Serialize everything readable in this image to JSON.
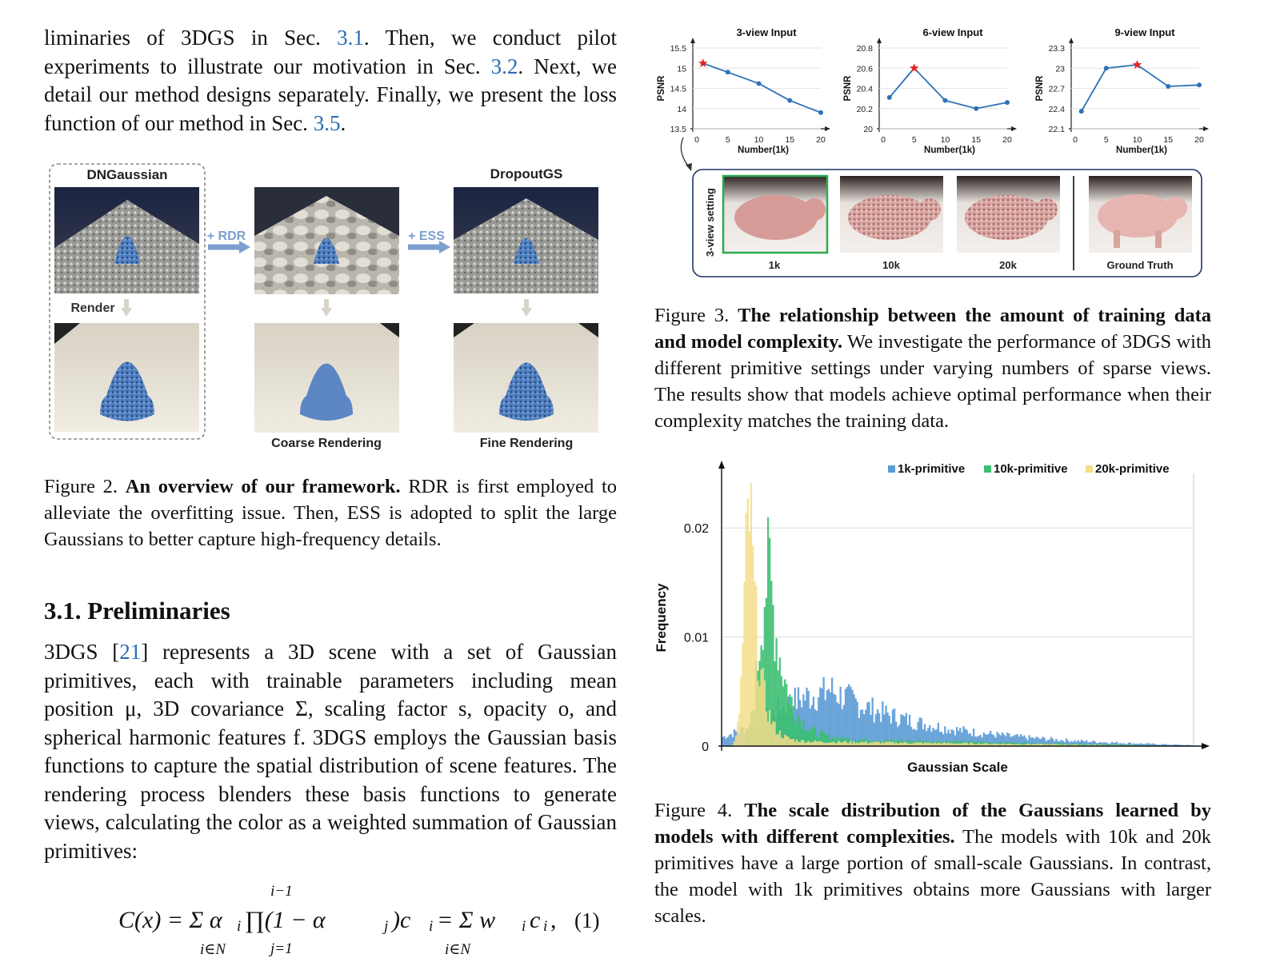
{
  "intro_paragraph": {
    "p1": "liminaries of 3DGS in Sec. ",
    "l1": "3.1",
    "p2": ". Then, we conduct pilot experiments to illustrate our motivation in Sec. ",
    "l2": "3.2",
    "p3": ". Next, we detail our method designs separately. Finally, we present the loss function of our method in Sec. ",
    "l3": "3.5",
    "p4": "."
  },
  "figure2": {
    "labels": {
      "dngaussian": "DNGaussian",
      "dropoutgs": "DropoutGS",
      "rdr": "+ RDR",
      "ess": "+ ESS",
      "render": "Render",
      "coarse": "Coarse Rendering",
      "fine": "Fine Rendering"
    },
    "caption": {
      "prefix": "Figure 2. ",
      "bold": "An overview of our framework.",
      "text": " RDR is first employed to alleviate the overfitting issue. Then, ESS is adopted to split the large Gaussians to better capture high-frequency details."
    }
  },
  "section": {
    "title": "3.1. Preliminaries",
    "p1": "3DGS [",
    "ref": "21",
    "p2": "] represents a 3D scene with a set of Gaussian primitives, each with trainable parameters including mean position μ, 3D covariance Σ, scaling factor s, opacity o, and spherical harmonic features f. 3DGS employs the Gaussian basis functions to capture the spatial distribution of scene features. The rendering process blenders these basis functions to generate views, calculating the color as a weighted summation of Gaussian primitives:"
  },
  "equation": {
    "lhs": "C(x) = Σ α",
    "mid": "∏(1 − α",
    "rhs": ")c",
    "tail": " = Σ w",
    "end": "c",
    "comma": ",",
    "upper": "i−1",
    "lower1": "i∈N",
    "lower2": "j=1",
    "lower3": "i∈N",
    "sub_i": "i",
    "sub_j": "j",
    "number": "(1)"
  },
  "figure3": {
    "ylabel": "PSNR",
    "xlabel": "Number(1k)",
    "panel_label": "3-view setting",
    "thumb_labels": [
      "1k",
      "10k",
      "20k",
      "Ground Truth"
    ],
    "caption": {
      "prefix": "Figure 3. ",
      "bold": "The relationship between the amount of training data and model complexity.",
      "text": " We investigate the performance of 3DGS with different primitive settings under varying numbers of sparse views. The results show that models achieve optimal performance when their complexity matches the training data."
    }
  },
  "figure4": {
    "caption": {
      "prefix": "Figure 4. ",
      "bold": "The scale distribution of the Gaussians learned by models with different complexities.",
      "text": " The models with 10k and 20k primitives have a large portion of small-scale Gaussians. In contrast, the model with 1k primitives obtains more Gaussians with larger scales."
    }
  },
  "colors": {
    "link": "#2a6db0",
    "line": "#2e72b8",
    "star": "#e0262b",
    "hist_1k": "#5b9bd5",
    "hist_10k": "#3cbf72",
    "hist_20k": "#f4de8a",
    "arrow": "#7d9fd0"
  },
  "chart_data": [
    {
      "type": "line",
      "title": "3-view Input",
      "xlabel": "Number(1k)",
      "ylabel": "PSNR",
      "x": [
        1,
        5,
        10,
        15,
        20
      ],
      "y": [
        15.12,
        14.9,
        14.62,
        14.2,
        13.9
      ],
      "best_index": 0,
      "xticks": [
        "0",
        "5",
        "10",
        "15",
        "20"
      ],
      "yticks": [
        "13.5",
        "14",
        "14.5",
        "15",
        "15.5"
      ],
      "xlim": [
        0,
        20
      ],
      "ylim": [
        13.5,
        15.5
      ]
    },
    {
      "type": "line",
      "title": "6-view Input",
      "xlabel": "Number(1k)",
      "ylabel": "PSNR",
      "x": [
        1,
        5,
        10,
        15,
        20
      ],
      "y": [
        20.31,
        20.6,
        20.28,
        20.2,
        20.26
      ],
      "best_index": 1,
      "xticks": [
        "0",
        "5",
        "10",
        "15",
        "20"
      ],
      "yticks": [
        "20",
        "20.2",
        "20.4",
        "20.6",
        "20.8"
      ],
      "xlim": [
        0,
        20
      ],
      "ylim": [
        20.0,
        20.8
      ]
    },
    {
      "type": "line",
      "title": "9-view Input",
      "xlabel": "Number(1k)",
      "ylabel": "PSNR",
      "x": [
        1,
        5,
        10,
        15,
        20
      ],
      "y": [
        22.36,
        23.0,
        23.05,
        22.73,
        22.75
      ],
      "best_index": 2,
      "xticks": [
        "0",
        "5",
        "10",
        "15",
        "20"
      ],
      "yticks": [
        "22.1",
        "22.4",
        "22.7",
        "23",
        "23.3"
      ],
      "xlim": [
        0,
        20
      ],
      "ylim": [
        22.1,
        23.3
      ]
    },
    {
      "type": "bar",
      "subtype": "histogram",
      "xlabel": "Gaussian Scale",
      "ylabel": "Frequency",
      "yticks": [
        "0",
        "0.01",
        "0.02"
      ],
      "ylim": [
        0,
        0.025
      ],
      "legend_position": "top-right",
      "grid": true,
      "series": [
        {
          "name": "20k-primitive",
          "peak_bin": 0.06,
          "peak": 0.0213,
          "width": 0.03,
          "tail": 0.0005
        },
        {
          "name": "10k-primitive",
          "peak_bin": 0.1,
          "peak": 0.0158,
          "width": 0.05,
          "tail": 0.0008
        },
        {
          "name": "1k-primitive",
          "peak_bin": 0.22,
          "peak": 0.0048,
          "width": 0.3,
          "tail": 0.0008
        }
      ],
      "series_colors": [
        "#f4de8a",
        "#3cbf72",
        "#5b9bd5"
      ]
    }
  ]
}
